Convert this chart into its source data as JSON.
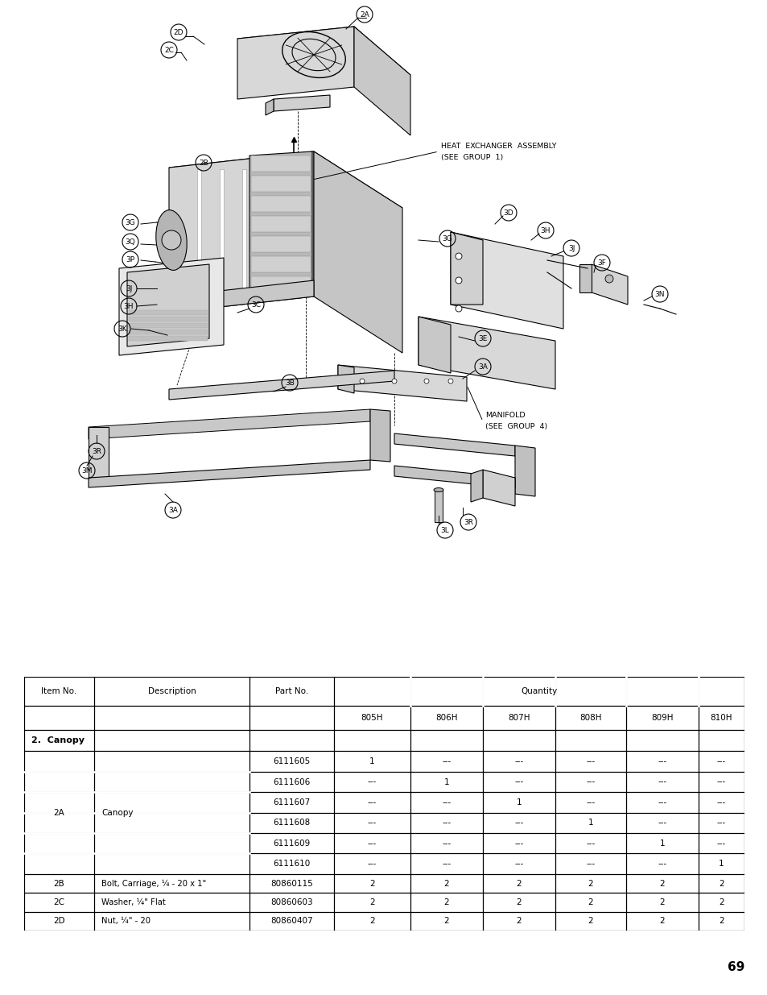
{
  "page_number": "69",
  "table": {
    "quantity_cols": [
      "805H",
      "806H",
      "807H",
      "808H",
      "809H",
      "810H"
    ],
    "section_label": "2.  Canopy",
    "rows_2a": [
      {
        "part_no": "6111605",
        "qty": [
          "1",
          "---",
          "---",
          "---",
          "---",
          "---"
        ]
      },
      {
        "part_no": "6111606",
        "qty": [
          "---",
          "1",
          "---",
          "---",
          "---",
          "---"
        ]
      },
      {
        "part_no": "6111607",
        "qty": [
          "---",
          "---",
          "1",
          "---",
          "---",
          "---"
        ]
      },
      {
        "part_no": "6111608",
        "qty": [
          "---",
          "---",
          "---",
          "1",
          "---",
          "---"
        ]
      },
      {
        "part_no": "6111609",
        "qty": [
          "---",
          "---",
          "---",
          "---",
          "1",
          "---"
        ]
      },
      {
        "part_no": "6111610",
        "qty": [
          "---",
          "---",
          "---",
          "---",
          "---",
          "1"
        ]
      }
    ],
    "simple_rows": [
      {
        "item": "2B",
        "description": "Bolt, Carriage, ¼ - 20 x 1\"",
        "part_no": "80860115",
        "qty": [
          "2",
          "2",
          "2",
          "2",
          "2",
          "2"
        ]
      },
      {
        "item": "2C",
        "description": "Washer, ¼\" Flat",
        "part_no": "80860603",
        "qty": [
          "2",
          "2",
          "2",
          "2",
          "2",
          "2"
        ]
      },
      {
        "item": "2D",
        "description": "Nut, ¼\" - 20",
        "part_no": "80860407",
        "qty": [
          "2",
          "2",
          "2",
          "2",
          "2",
          "2"
        ]
      }
    ]
  }
}
